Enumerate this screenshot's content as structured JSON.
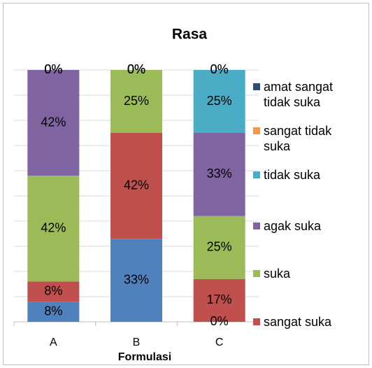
{
  "chart_data": {
    "type": "stacked_bar",
    "title": "Rasa",
    "x_label": "Formulasi",
    "categories": [
      "A",
      "B",
      "C"
    ],
    "ylim": [
      0,
      100
    ],
    "yticks": [
      0,
      10,
      20,
      30,
      40,
      50,
      60,
      70,
      80,
      90,
      100
    ],
    "grid": true,
    "series": [
      {
        "color": "#4f81bd",
        "values": [
          8,
          33,
          0
        ],
        "value_labels": [
          "8%",
          "33%",
          "0%"
        ]
      },
      {
        "name": "sangat suka",
        "color": "#c0504d",
        "values": [
          8,
          42,
          17
        ],
        "value_labels": [
          "8%",
          "42%",
          "17%"
        ]
      },
      {
        "name": "suka",
        "color": "#9bbb59",
        "values": [
          42,
          25,
          25
        ],
        "value_labels": [
          "42%",
          "25%",
          "25%"
        ]
      },
      {
        "name": "agak suka",
        "color": "#8064a2",
        "values": [
          42,
          0,
          33
        ],
        "value_labels": [
          "42%",
          "0%",
          "33%"
        ]
      },
      {
        "name": "tidak suka",
        "color": "#4bacc6",
        "values": [
          0,
          0,
          25
        ],
        "value_labels": [
          "0%",
          "0%",
          "25%"
        ]
      },
      {
        "name": "sangat tidak suka",
        "color": "#f79646",
        "values": [
          0,
          0,
          0
        ],
        "value_labels": [
          "0%",
          "0%",
          "0%"
        ]
      },
      {
        "name": "amat sangat tidak suka",
        "color": "#2c4d75",
        "values": [
          0,
          0,
          0
        ],
        "value_labels": [
          "0%",
          "0%",
          "0%"
        ]
      }
    ]
  }
}
